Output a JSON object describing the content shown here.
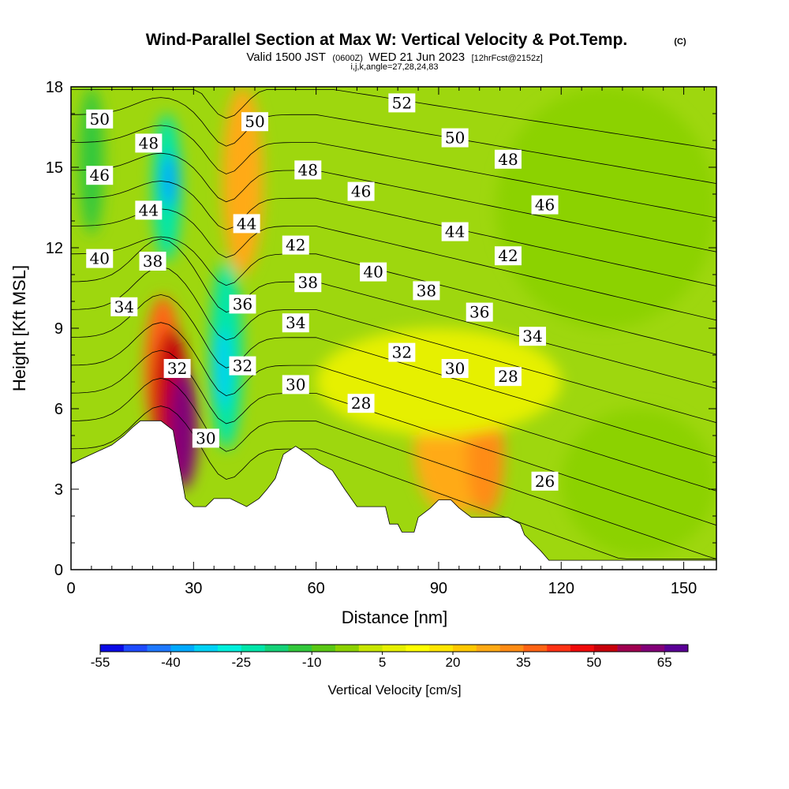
{
  "chart_data": {
    "type": "heatmap",
    "title": "Wind-Parallel Section at Max W: Vertical Velocity & Pot.Temp.",
    "title_mark": "(C)",
    "subtitle_parts": [
      "Valid 1500 JST",
      "(0600Z)",
      "WED 21 Jun 2023",
      "[12hrFcst@2152z]"
    ],
    "subtitle2": "i,j,k,angle=27,28,24,83",
    "xlabel": "Distance [nm]",
    "ylabel": "Height [Kft MSL]",
    "xlim": [
      0,
      158
    ],
    "ylim": [
      0,
      18
    ],
    "x_ticks": [
      0,
      30,
      60,
      90,
      120,
      150
    ],
    "y_ticks": [
      0,
      3,
      6,
      9,
      12,
      15,
      18
    ],
    "colorbar": {
      "label": "Vertical Velocity [cm/s]",
      "levels": [
        -55,
        -50,
        -45,
        -40,
        -35,
        -30,
        -25,
        -20,
        -15,
        -10,
        -5,
        0,
        5,
        10,
        15,
        20,
        25,
        30,
        35,
        40,
        45,
        50,
        55,
        60,
        65
      ],
      "tick_labels": [
        "-55",
        "-40",
        "-25",
        "-10",
        "5",
        "20",
        "35",
        "50",
        "65"
      ],
      "colors": [
        "#0a0ae6",
        "#1e4bff",
        "#1e78ff",
        "#00aaff",
        "#00d2f5",
        "#00f0dc",
        "#00e6aa",
        "#14d278",
        "#32c83c",
        "#5ac814",
        "#8cd200",
        "#c8e600",
        "#e6f000",
        "#ffff00",
        "#ffe600",
        "#ffc800",
        "#ffaa14",
        "#ff8c14",
        "#ff6414",
        "#ff3214",
        "#f00a0a",
        "#c8000a",
        "#a00050",
        "#820078",
        "#5a0096"
      ]
    },
    "terrain_profile": [
      [
        0,
        3.95
      ],
      [
        5,
        4.3
      ],
      [
        10,
        4.65
      ],
      [
        13,
        5.0
      ],
      [
        15,
        5.3
      ],
      [
        17,
        5.55
      ],
      [
        22,
        5.55
      ],
      [
        25,
        5.2
      ],
      [
        28,
        2.65
      ],
      [
        30,
        2.35
      ],
      [
        33,
        2.35
      ],
      [
        35,
        2.65
      ],
      [
        39,
        2.65
      ],
      [
        43,
        2.35
      ],
      [
        46,
        2.65
      ],
      [
        48,
        3.0
      ],
      [
        50,
        3.4
      ],
      [
        52,
        4.3
      ],
      [
        55,
        4.6
      ],
      [
        58,
        4.3
      ],
      [
        61,
        3.95
      ],
      [
        64,
        3.7
      ],
      [
        67,
        3.0
      ],
      [
        70,
        2.35
      ],
      [
        77,
        2.35
      ],
      [
        78,
        1.7
      ],
      [
        80,
        1.7
      ],
      [
        81,
        1.4
      ],
      [
        84,
        1.4
      ],
      [
        85,
        1.95
      ],
      [
        88,
        2.3
      ],
      [
        90,
        2.6
      ],
      [
        93,
        2.6
      ],
      [
        95,
        2.3
      ],
      [
        98,
        1.95
      ],
      [
        100,
        1.95
      ],
      [
        107,
        1.95
      ],
      [
        110,
        1.7
      ],
      [
        111,
        1.3
      ],
      [
        113,
        1.0
      ],
      [
        115,
        0.7
      ],
      [
        117,
        0.35
      ],
      [
        158,
        0.35
      ]
    ],
    "velocity_cells": [
      {
        "x": [
          18,
          27
        ],
        "y": [
          4.8,
          10.2
        ],
        "w": 35
      },
      {
        "x": [
          20,
          29
        ],
        "y": [
          3.5,
          9.0
        ],
        "w": 50
      },
      {
        "x": [
          24,
          31
        ],
        "y": [
          3.0,
          7.5
        ],
        "w": 60
      },
      {
        "x": [
          34,
          42
        ],
        "y": [
          4.5,
          11.5
        ],
        "w": -25
      },
      {
        "x": [
          35,
          39
        ],
        "y": [
          6.0,
          9.0
        ],
        "w": -35
      },
      {
        "x": [
          20,
          27
        ],
        "y": [
          11.5,
          17.0
        ],
        "w": -25
      },
      {
        "x": [
          22,
          26
        ],
        "y": [
          13.5,
          15.5
        ],
        "w": -40
      },
      {
        "x": [
          37,
          47
        ],
        "y": [
          11.0,
          18.0
        ],
        "w": 25
      },
      {
        "x": [
          2,
          8
        ],
        "y": [
          12.5,
          18.0
        ],
        "w": -15
      },
      {
        "x": [
          84,
          103
        ],
        "y": [
          2.0,
          7.0
        ],
        "w": 25
      },
      {
        "x": [
          97,
          106
        ],
        "y": [
          2.0,
          6.5
        ],
        "w": 30
      },
      {
        "x": [
          60,
          120
        ],
        "y": [
          5.0,
          9.0
        ],
        "w": 5
      },
      {
        "x": [
          120,
          158
        ],
        "y": [
          0.5,
          6.0
        ],
        "w": -5
      },
      {
        "x": [
          104,
          158
        ],
        "y": [
          9.0,
          18.0
        ],
        "w": -3
      }
    ],
    "theta_contours": [
      26,
      28,
      30,
      32,
      34,
      36,
      38,
      40,
      42,
      44,
      46,
      48,
      50,
      52
    ],
    "contour_labels": [
      {
        "value": "50",
        "x": 7,
        "y": 16.8
      },
      {
        "value": "48",
        "x": 19,
        "y": 15.9
      },
      {
        "value": "46",
        "x": 7,
        "y": 14.7
      },
      {
        "value": "44",
        "x": 19,
        "y": 13.4
      },
      {
        "value": "40",
        "x": 7,
        "y": 11.6
      },
      {
        "value": "38",
        "x": 20,
        "y": 11.5
      },
      {
        "value": "34",
        "x": 13,
        "y": 9.8
      },
      {
        "value": "50",
        "x": 45,
        "y": 16.7
      },
      {
        "value": "44",
        "x": 43,
        "y": 12.9
      },
      {
        "value": "36",
        "x": 42,
        "y": 9.9
      },
      {
        "value": "32",
        "x": 26,
        "y": 7.5
      },
      {
        "value": "32",
        "x": 42,
        "y": 7.6
      },
      {
        "value": "30",
        "x": 33,
        "y": 4.9
      },
      {
        "value": "30",
        "x": 55,
        "y": 6.9
      },
      {
        "value": "28",
        "x": 71,
        "y": 6.2
      },
      {
        "value": "52",
        "x": 81,
        "y": 17.4
      },
      {
        "value": "50",
        "x": 94,
        "y": 16.1
      },
      {
        "value": "48",
        "x": 58,
        "y": 14.9
      },
      {
        "value": "48",
        "x": 107,
        "y": 15.3
      },
      {
        "value": "46",
        "x": 71,
        "y": 14.1
      },
      {
        "value": "46",
        "x": 116,
        "y": 13.6
      },
      {
        "value": "44",
        "x": 94,
        "y": 12.6
      },
      {
        "value": "42",
        "x": 55,
        "y": 12.1
      },
      {
        "value": "42",
        "x": 107,
        "y": 11.7
      },
      {
        "value": "40",
        "x": 74,
        "y": 11.1
      },
      {
        "value": "38",
        "x": 58,
        "y": 10.7
      },
      {
        "value": "38",
        "x": 87,
        "y": 10.4
      },
      {
        "value": "36",
        "x": 100,
        "y": 9.6
      },
      {
        "value": "34",
        "x": 55,
        "y": 9.2
      },
      {
        "value": "34",
        "x": 113,
        "y": 8.7
      },
      {
        "value": "32",
        "x": 81,
        "y": 8.1
      },
      {
        "value": "30",
        "x": 94,
        "y": 7.5
      },
      {
        "value": "28",
        "x": 107,
        "y": 7.2
      },
      {
        "value": "26",
        "x": 116,
        "y": 3.3
      }
    ]
  }
}
